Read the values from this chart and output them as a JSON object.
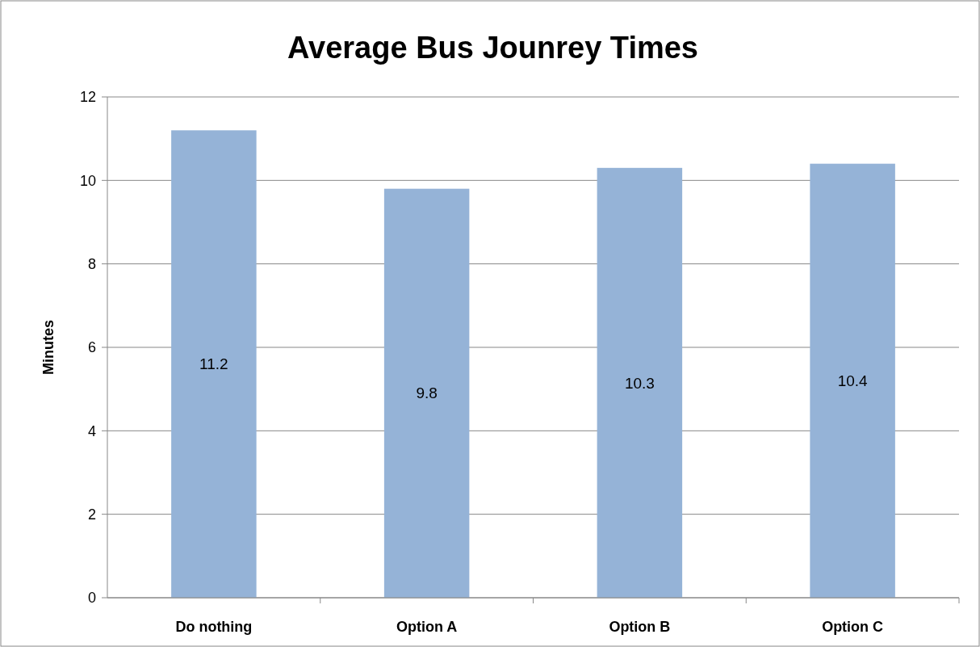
{
  "chart_data": {
    "type": "bar",
    "title": "Average Bus Jounrey Times",
    "ylabel": "Minutes",
    "categories": [
      "Do nothing",
      "Option A",
      "Option B",
      "Option C"
    ],
    "values": [
      11.2,
      9.8,
      10.3,
      10.4
    ],
    "color": "#95b3d7",
    "ylim": [
      0,
      12
    ],
    "yticks": [
      0,
      2,
      4,
      6,
      8,
      10,
      12
    ],
    "grid": "y",
    "data_labels": true
  }
}
